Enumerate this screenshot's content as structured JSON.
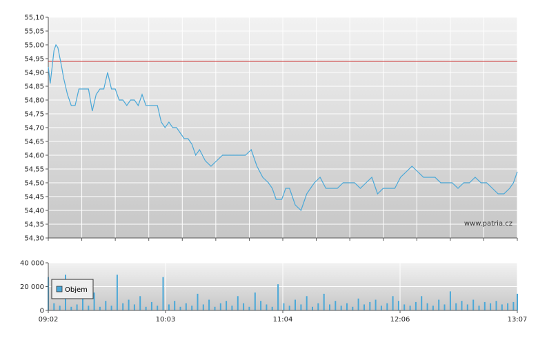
{
  "watermark": "www.patria.cz",
  "colors": {
    "price_line": "#4aa8d8",
    "reference_line": "#cc3333",
    "volume_bar": "#4aa8d8",
    "grid": "#ffffff"
  },
  "chart_data": [
    {
      "type": "line",
      "name": "price",
      "title": "",
      "xlabel": "",
      "ylabel": "",
      "ylim": [
        54.3,
        55.1
      ],
      "xlim": [
        "09:02",
        "13:07"
      ],
      "yticks": [
        "55,10",
        "55,05",
        "55,00",
        "54,95",
        "54,90",
        "54,85",
        "54,80",
        "54,75",
        "54,70",
        "54,65",
        "54,60",
        "54,55",
        "54,50",
        "54,45",
        "54,40",
        "54,35",
        "54,30"
      ],
      "grid": true,
      "reference_line": {
        "y": 54.94
      },
      "series": [
        {
          "x": [
            "09:02",
            "09:03",
            "09:04",
            "09:05",
            "09:06",
            "09:07",
            "09:09",
            "09:10",
            "09:12",
            "09:14",
            "09:16",
            "09:18",
            "09:21",
            "09:23",
            "09:25",
            "09:27",
            "09:29",
            "09:31",
            "09:33",
            "09:35",
            "09:37",
            "09:39",
            "09:41",
            "09:43",
            "09:45",
            "09:47",
            "09:49",
            "09:51",
            "09:53",
            "09:55",
            "09:57",
            "09:59",
            "10:01",
            "10:03",
            "10:05",
            "10:07",
            "10:09",
            "10:11",
            "10:13",
            "10:15",
            "10:17",
            "10:19",
            "10:21",
            "10:24",
            "10:27",
            "10:30",
            "10:33",
            "10:36",
            "10:39",
            "10:42",
            "10:45",
            "10:48",
            "10:51",
            "10:54",
            "10:57",
            "10:59",
            "11:00",
            "11:01",
            "11:02",
            "11:04",
            "11:06",
            "11:08",
            "11:11",
            "11:14",
            "11:17",
            "11:19",
            "11:21",
            "11:24",
            "11:27",
            "11:30",
            "11:33",
            "11:36",
            "11:39",
            "11:42",
            "11:45",
            "11:48",
            "11:51",
            "11:54",
            "11:57",
            "12:00",
            "12:03",
            "12:06",
            "12:09",
            "12:12",
            "12:15",
            "12:18",
            "12:21",
            "12:24",
            "12:27",
            "12:30",
            "12:33",
            "12:36",
            "12:39",
            "12:42",
            "12:45",
            "12:48",
            "12:51",
            "12:54",
            "12:57",
            "13:00",
            "13:03",
            "13:05",
            "13:07"
          ],
          "y": [
            54.92,
            54.86,
            54.92,
            54.98,
            55.0,
            54.99,
            54.92,
            54.88,
            54.82,
            54.78,
            54.78,
            54.84,
            54.84,
            54.84,
            54.76,
            54.82,
            54.84,
            54.84,
            54.9,
            54.84,
            54.84,
            54.8,
            54.8,
            54.78,
            54.8,
            54.8,
            54.78,
            54.82,
            54.78,
            54.78,
            54.78,
            54.78,
            54.72,
            54.7,
            54.72,
            54.7,
            54.7,
            54.68,
            54.66,
            54.66,
            54.64,
            54.6,
            54.62,
            54.58,
            54.56,
            54.58,
            54.6,
            54.6,
            54.6,
            54.6,
            54.6,
            54.62,
            54.56,
            54.52,
            54.5,
            54.48,
            54.46,
            54.44,
            54.44,
            54.44,
            54.48,
            54.48,
            54.42,
            54.4,
            54.46,
            54.48,
            54.5,
            54.52,
            54.48,
            54.48,
            54.48,
            54.5,
            54.5,
            54.5,
            54.48,
            54.5,
            54.52,
            54.46,
            54.48,
            54.48,
            54.48,
            54.52,
            54.54,
            54.56,
            54.54,
            54.52,
            54.52,
            54.52,
            54.5,
            54.5,
            54.5,
            54.48,
            54.5,
            54.5,
            54.52,
            54.5,
            54.5,
            54.48,
            54.46,
            54.46,
            54.48,
            54.5,
            54.54
          ]
        }
      ]
    },
    {
      "type": "bar",
      "name": "volume",
      "ylim": [
        0,
        40000
      ],
      "yticks": [
        "40 000",
        "20 000",
        "0"
      ],
      "xticks": [
        "09:02",
        "10:03",
        "11:04",
        "12:06",
        "13:07"
      ],
      "legend": {
        "label": "Objem",
        "placement": "top-left"
      },
      "series": [
        {
          "name": "Objem",
          "x": [
            "09:02",
            "09:05",
            "09:08",
            "09:11",
            "09:14",
            "09:17",
            "09:20",
            "09:23",
            "09:26",
            "09:29",
            "09:32",
            "09:35",
            "09:38",
            "09:41",
            "09:44",
            "09:47",
            "09:50",
            "09:53",
            "09:56",
            "09:59",
            "10:02",
            "10:05",
            "10:08",
            "10:11",
            "10:14",
            "10:17",
            "10:20",
            "10:23",
            "10:26",
            "10:29",
            "10:32",
            "10:35",
            "10:38",
            "10:41",
            "10:44",
            "10:47",
            "10:50",
            "10:53",
            "10:56",
            "10:59",
            "11:02",
            "11:05",
            "11:08",
            "11:11",
            "11:14",
            "11:17",
            "11:20",
            "11:23",
            "11:26",
            "11:29",
            "11:32",
            "11:35",
            "11:38",
            "11:41",
            "11:44",
            "11:47",
            "11:50",
            "11:53",
            "11:56",
            "11:59",
            "12:02",
            "12:05",
            "12:08",
            "12:11",
            "12:14",
            "12:17",
            "12:20",
            "12:23",
            "12:26",
            "12:29",
            "12:32",
            "12:35",
            "12:38",
            "12:41",
            "12:44",
            "12:47",
            "12:50",
            "12:53",
            "12:56",
            "12:59",
            "13:02",
            "13:05",
            "13:07"
          ],
          "values": [
            28000,
            6000,
            4000,
            30000,
            3000,
            5000,
            12000,
            4000,
            15000,
            3000,
            8000,
            4000,
            30000,
            6000,
            9000,
            5000,
            12000,
            3000,
            7000,
            4000,
            28000,
            5000,
            8000,
            3000,
            6000,
            4000,
            14000,
            5000,
            9000,
            3000,
            6000,
            8000,
            4000,
            12000,
            6000,
            3000,
            15000,
            8000,
            5000,
            3000,
            22000,
            6000,
            4000,
            9000,
            5000,
            12000,
            3000,
            6000,
            14000,
            5000,
            8000,
            4000,
            6000,
            3000,
            10000,
            5000,
            7000,
            9000,
            4000,
            6000,
            12000,
            8000,
            5000,
            4000,
            7000,
            12000,
            6000,
            4000,
            9000,
            5000,
            16000,
            6000,
            8000,
            5000,
            9000,
            4000,
            7000,
            6000,
            8000,
            5000,
            6000,
            7000,
            14000
          ]
        }
      ]
    }
  ]
}
